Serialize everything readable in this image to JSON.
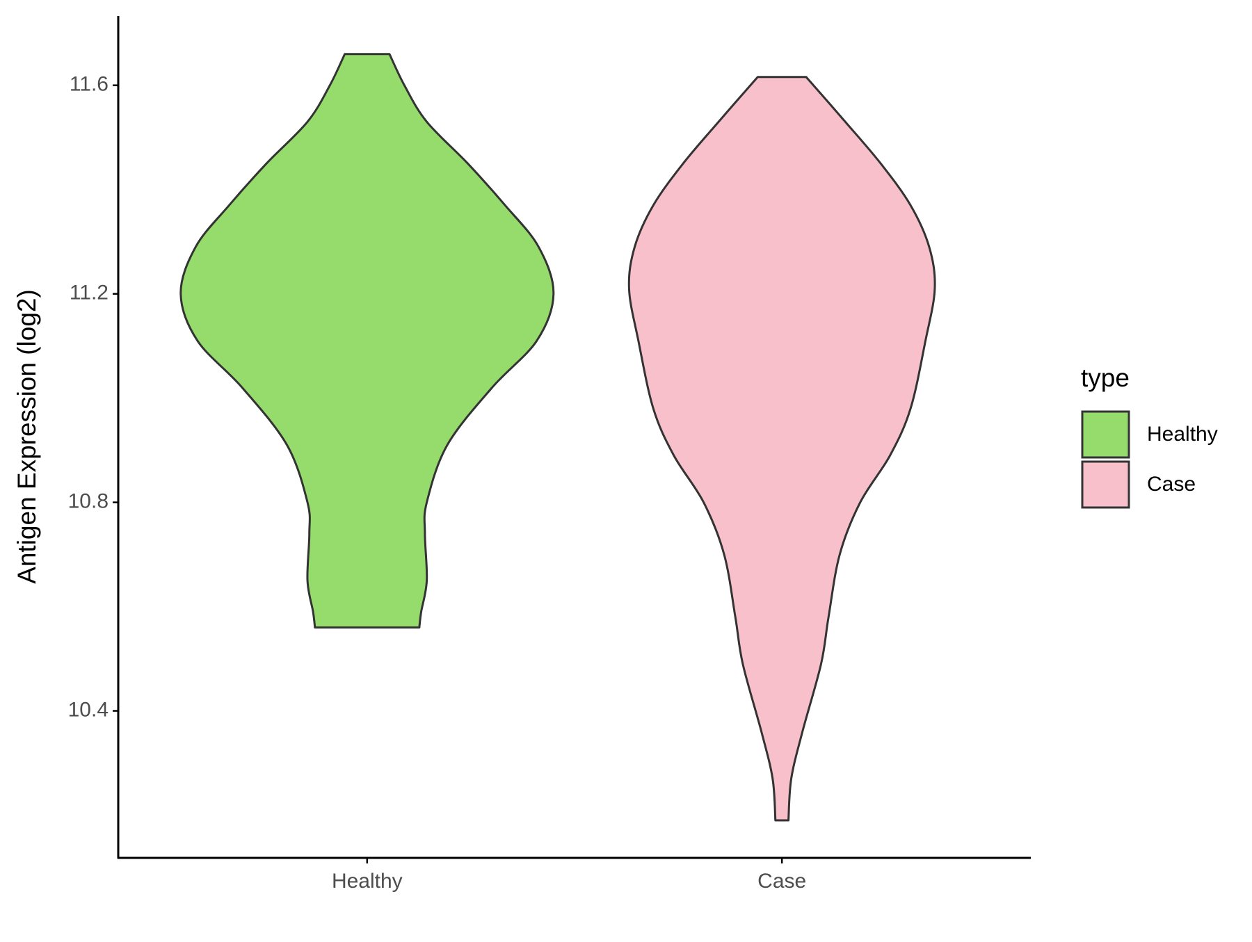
{
  "chart_data": {
    "type": "violin",
    "y_label": "Antigen Expression (log2)",
    "legend_title": "type",
    "legend": "right",
    "categories": [
      "Healthy",
      "Case"
    ],
    "ylim": [
      10.118,
      11.733
    ],
    "yticks": [
      10.4,
      10.8,
      11.2,
      11.6
    ],
    "series": [
      {
        "name": "Healthy",
        "color": "#95dc6c",
        "values": [
          11.66,
          11.6,
          11.53,
          11.45,
          11.37,
          11.29,
          11.2,
          11.11,
          11.02,
          10.91,
          10.8,
          10.74,
          10.65,
          10.59,
          10.56
        ],
        "density": [
          0.12,
          0.2,
          0.32,
          0.54,
          0.74,
          0.92,
          1.0,
          0.91,
          0.67,
          0.43,
          0.32,
          0.31,
          0.32,
          0.29,
          0.28
        ]
      },
      {
        "name": "Case",
        "color": "#f7c0cb",
        "values": [
          11.616,
          11.53,
          11.45,
          11.37,
          11.29,
          11.21,
          11.11,
          10.98,
          10.89,
          10.8,
          10.7,
          10.58,
          10.49,
          10.36,
          10.27,
          10.19
        ],
        "density": [
          0.13,
          0.34,
          0.53,
          0.69,
          0.79,
          0.82,
          0.77,
          0.69,
          0.58,
          0.42,
          0.31,
          0.25,
          0.21,
          0.11,
          0.05,
          0.035
        ]
      }
    ]
  }
}
